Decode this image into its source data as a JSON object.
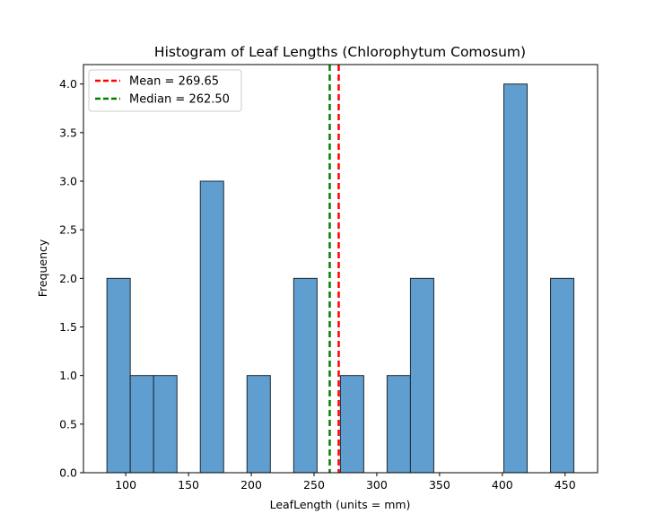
{
  "chart_data": {
    "type": "bar",
    "title": "Histogram of Leaf Lengths (Chlorophytum Comosum)",
    "xlabel": "LeafLength (units = mm)",
    "ylabel": "Frequency",
    "xlim": [
      66.3,
      475.9
    ],
    "ylim": [
      0,
      4.2
    ],
    "xticks": [
      100,
      150,
      200,
      250,
      300,
      350,
      400,
      450
    ],
    "yticks": [
      0.0,
      0.5,
      1.0,
      1.5,
      2.0,
      2.5,
      3.0,
      3.5,
      4.0
    ],
    "ytick_labels": [
      "0.0",
      "0.5",
      "1.0",
      "1.5",
      "2.0",
      "2.5",
      "3.0",
      "3.5",
      "4.0"
    ],
    "bins": [
      {
        "x0": 85.0,
        "x1": 103.6,
        "count": 2
      },
      {
        "x0": 103.6,
        "x1": 122.2,
        "count": 1
      },
      {
        "x0": 122.2,
        "x1": 140.8,
        "count": 1
      },
      {
        "x0": 140.8,
        "x1": 159.4,
        "count": 0
      },
      {
        "x0": 159.4,
        "x1": 178.0,
        "count": 3
      },
      {
        "x0": 178.0,
        "x1": 196.6,
        "count": 0
      },
      {
        "x0": 196.6,
        "x1": 215.2,
        "count": 1
      },
      {
        "x0": 215.2,
        "x1": 233.8,
        "count": 0
      },
      {
        "x0": 233.8,
        "x1": 252.4,
        "count": 2
      },
      {
        "x0": 252.4,
        "x1": 271.0,
        "count": 0
      },
      {
        "x0": 271.0,
        "x1": 289.6,
        "count": 1
      },
      {
        "x0": 289.6,
        "x1": 308.2,
        "count": 0
      },
      {
        "x0": 308.2,
        "x1": 326.8,
        "count": 1
      },
      {
        "x0": 326.8,
        "x1": 345.4,
        "count": 2
      },
      {
        "x0": 345.4,
        "x1": 364.0,
        "count": 0
      },
      {
        "x0": 364.0,
        "x1": 382.6,
        "count": 0
      },
      {
        "x0": 382.6,
        "x1": 401.2,
        "count": 0
      },
      {
        "x0": 401.2,
        "x1": 419.8,
        "count": 4
      },
      {
        "x0": 419.8,
        "x1": 438.4,
        "count": 0
      },
      {
        "x0": 438.4,
        "x1": 457.0,
        "count": 2
      }
    ],
    "reference_lines": [
      {
        "label": "Mean = 269.65",
        "x": 269.65,
        "color": "#ff0000",
        "style": "dashed"
      },
      {
        "label": "Median = 262.50",
        "x": 262.5,
        "color": "#008000",
        "style": "dashed"
      }
    ],
    "bar_color": "#5f9ecf",
    "bar_edge_color": "#1f2a33",
    "legend_position": "top-left",
    "grid": false
  }
}
